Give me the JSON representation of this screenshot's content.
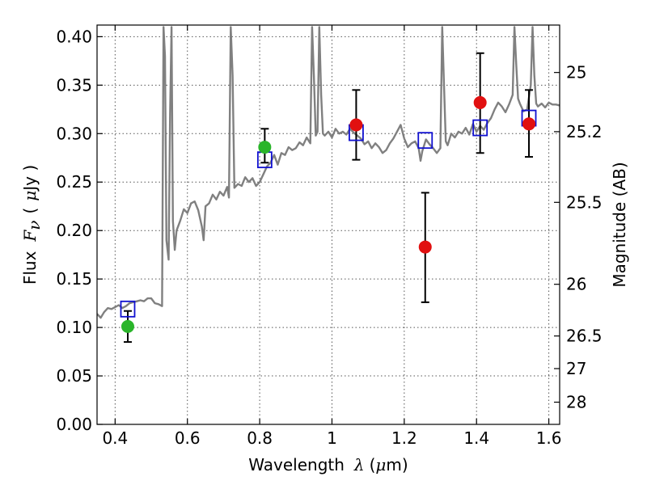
{
  "chart_data": {
    "type": "scatter",
    "xlim": [
      0.35,
      1.63
    ],
    "ylim": [
      0.0,
      0.412
    ],
    "grid": true,
    "x_ticks": [
      0.4,
      0.6,
      0.8,
      1.0,
      1.2,
      1.4,
      1.6
    ],
    "x_tick_labels": [
      "0.4",
      "0.6",
      "0.8",
      "1",
      "1.2",
      "1.4",
      "1.6"
    ],
    "y_ticks": [
      0.0,
      0.05,
      0.1,
      0.15,
      0.2,
      0.25,
      0.3,
      0.35,
      0.4
    ],
    "y_tick_labels": [
      "0.00",
      "0.05",
      "0.10",
      "0.15",
      "0.20",
      "0.25",
      "0.30",
      "0.35",
      "0.40"
    ],
    "xlabel_prefix": "Wavelength",
    "xlabel_var": "λ",
    "xlabel_unit_open": "(",
    "xlabel_unit_mu": "μ",
    "xlabel_unit_rest": "m)",
    "ylabel_prefix": "Flux",
    "ylabel_var": "F",
    "ylabel_sub": "ν",
    "ylabel_unit_open": "(",
    "ylabel_unit_mu": "μ",
    "ylabel_unit_rest": "Jy )",
    "right_ylabel": "Magnitude (AB)",
    "right_ticks": [
      {
        "label": "25",
        "mag": 25.0
      },
      {
        "label": "25.2",
        "mag": 25.2
      },
      {
        "label": "25.5",
        "mag": 25.5
      },
      {
        "label": "26",
        "mag": 26.0
      },
      {
        "label": "26.5",
        "mag": 26.5
      },
      {
        "label": "27",
        "mag": 27.0
      },
      {
        "label": "28",
        "mag": 28.0
      }
    ],
    "series": [
      {
        "marker": "circle",
        "color": "#2ab52a",
        "points": [
          {
            "x": 0.435,
            "y": 0.101,
            "yerr": [
              0.085,
              0.117
            ]
          },
          {
            "x": 0.814,
            "y": 0.286,
            "yerr": [
              0.27,
              0.305
            ]
          }
        ]
      },
      {
        "marker": "circle",
        "color": "#e11010",
        "points": [
          {
            "x": 1.067,
            "y": 0.309,
            "yerr": [
              0.273,
              0.345
            ]
          },
          {
            "x": 1.258,
            "y": 0.183,
            "yerr": [
              0.126,
              0.239
            ]
          },
          {
            "x": 1.41,
            "y": 0.332,
            "yerr": [
              0.28,
              0.383
            ]
          },
          {
            "x": 1.545,
            "y": 0.31,
            "yerr": [
              0.276,
              0.345
            ]
          }
        ]
      },
      {
        "marker": "open-square",
        "color": "#1010d0",
        "points": [
          {
            "x": 0.435,
            "y": 0.119
          },
          {
            "x": 0.814,
            "y": 0.273
          },
          {
            "x": 1.067,
            "y": 0.301
          },
          {
            "x": 1.258,
            "y": 0.293
          },
          {
            "x": 1.41,
            "y": 0.306
          },
          {
            "x": 1.545,
            "y": 0.316
          }
        ]
      },
      {
        "marker": "line",
        "color": "#808080",
        "points": [
          [
            0.35,
            0.114
          ],
          [
            0.36,
            0.11
          ],
          [
            0.37,
            0.116
          ],
          [
            0.38,
            0.12
          ],
          [
            0.39,
            0.119
          ],
          [
            0.4,
            0.121
          ],
          [
            0.41,
            0.123
          ],
          [
            0.42,
            0.12
          ],
          [
            0.43,
            0.122
          ],
          [
            0.44,
            0.125
          ],
          [
            0.45,
            0.126
          ],
          [
            0.46,
            0.127
          ],
          [
            0.47,
            0.128
          ],
          [
            0.48,
            0.127
          ],
          [
            0.49,
            0.13
          ],
          [
            0.5,
            0.13
          ],
          [
            0.51,
            0.125
          ],
          [
            0.52,
            0.124
          ],
          [
            0.53,
            0.122
          ],
          [
            0.534,
            0.41
          ],
          [
            0.538,
            0.38
          ],
          [
            0.542,
            0.19
          ],
          [
            0.548,
            0.17
          ],
          [
            0.552,
            0.32
          ],
          [
            0.556,
            0.41
          ],
          [
            0.56,
            0.21
          ],
          [
            0.565,
            0.18
          ],
          [
            0.57,
            0.2
          ],
          [
            0.58,
            0.21
          ],
          [
            0.59,
            0.222
          ],
          [
            0.6,
            0.218
          ],
          [
            0.61,
            0.228
          ],
          [
            0.62,
            0.23
          ],
          [
            0.63,
            0.221
          ],
          [
            0.64,
            0.204
          ],
          [
            0.645,
            0.19
          ],
          [
            0.65,
            0.225
          ],
          [
            0.66,
            0.228
          ],
          [
            0.67,
            0.237
          ],
          [
            0.68,
            0.232
          ],
          [
            0.69,
            0.24
          ],
          [
            0.7,
            0.236
          ],
          [
            0.71,
            0.245
          ],
          [
            0.715,
            0.234
          ],
          [
            0.72,
            0.41
          ],
          [
            0.725,
            0.36
          ],
          [
            0.73,
            0.244
          ],
          [
            0.74,
            0.248
          ],
          [
            0.75,
            0.246
          ],
          [
            0.76,
            0.255
          ],
          [
            0.77,
            0.25
          ],
          [
            0.78,
            0.254
          ],
          [
            0.79,
            0.246
          ],
          [
            0.8,
            0.25
          ],
          [
            0.81,
            0.258
          ],
          [
            0.82,
            0.266
          ],
          [
            0.83,
            0.27
          ],
          [
            0.84,
            0.278
          ],
          [
            0.85,
            0.268
          ],
          [
            0.86,
            0.28
          ],
          [
            0.87,
            0.278
          ],
          [
            0.88,
            0.286
          ],
          [
            0.89,
            0.283
          ],
          [
            0.9,
            0.285
          ],
          [
            0.91,
            0.291
          ],
          [
            0.92,
            0.288
          ],
          [
            0.93,
            0.296
          ],
          [
            0.94,
            0.29
          ],
          [
            0.945,
            0.41
          ],
          [
            0.95,
            0.36
          ],
          [
            0.955,
            0.298
          ],
          [
            0.96,
            0.302
          ],
          [
            0.965,
            0.41
          ],
          [
            0.97,
            0.34
          ],
          [
            0.975,
            0.3
          ],
          [
            0.98,
            0.298
          ],
          [
            0.99,
            0.302
          ],
          [
            1.0,
            0.296
          ],
          [
            1.01,
            0.305
          ],
          [
            1.02,
            0.3
          ],
          [
            1.03,
            0.302
          ],
          [
            1.04,
            0.299
          ],
          [
            1.05,
            0.305
          ],
          [
            1.06,
            0.301
          ],
          [
            1.07,
            0.298
          ],
          [
            1.08,
            0.295
          ],
          [
            1.09,
            0.289
          ],
          [
            1.1,
            0.292
          ],
          [
            1.11,
            0.285
          ],
          [
            1.12,
            0.29
          ],
          [
            1.13,
            0.286
          ],
          [
            1.14,
            0.28
          ],
          [
            1.15,
            0.283
          ],
          [
            1.16,
            0.29
          ],
          [
            1.17,
            0.295
          ],
          [
            1.18,
            0.302
          ],
          [
            1.19,
            0.309
          ],
          [
            1.2,
            0.295
          ],
          [
            1.21,
            0.286
          ],
          [
            1.22,
            0.29
          ],
          [
            1.23,
            0.292
          ],
          [
            1.24,
            0.285
          ],
          [
            1.245,
            0.272
          ],
          [
            1.25,
            0.282
          ],
          [
            1.26,
            0.294
          ],
          [
            1.27,
            0.289
          ],
          [
            1.28,
            0.285
          ],
          [
            1.29,
            0.28
          ],
          [
            1.3,
            0.285
          ],
          [
            1.305,
            0.41
          ],
          [
            1.31,
            0.35
          ],
          [
            1.315,
            0.292
          ],
          [
            1.32,
            0.288
          ],
          [
            1.33,
            0.3
          ],
          [
            1.34,
            0.296
          ],
          [
            1.35,
            0.302
          ],
          [
            1.36,
            0.3
          ],
          [
            1.37,
            0.306
          ],
          [
            1.38,
            0.299
          ],
          [
            1.39,
            0.31
          ],
          [
            1.4,
            0.302
          ],
          [
            1.41,
            0.308
          ],
          [
            1.42,
            0.304
          ],
          [
            1.43,
            0.311
          ],
          [
            1.44,
            0.316
          ],
          [
            1.45,
            0.325
          ],
          [
            1.46,
            0.332
          ],
          [
            1.47,
            0.328
          ],
          [
            1.48,
            0.322
          ],
          [
            1.49,
            0.33
          ],
          [
            1.5,
            0.34
          ],
          [
            1.505,
            0.41
          ],
          [
            1.51,
            0.37
          ],
          [
            1.515,
            0.336
          ],
          [
            1.52,
            0.331
          ],
          [
            1.53,
            0.323
          ],
          [
            1.54,
            0.325
          ],
          [
            1.55,
            0.35
          ],
          [
            1.555,
            0.41
          ],
          [
            1.56,
            0.36
          ],
          [
            1.565,
            0.331
          ],
          [
            1.57,
            0.328
          ],
          [
            1.58,
            0.331
          ],
          [
            1.59,
            0.327
          ],
          [
            1.6,
            0.332
          ],
          [
            1.61,
            0.33
          ],
          [
            1.62,
            0.33
          ],
          [
            1.63,
            0.329
          ]
        ]
      }
    ]
  }
}
